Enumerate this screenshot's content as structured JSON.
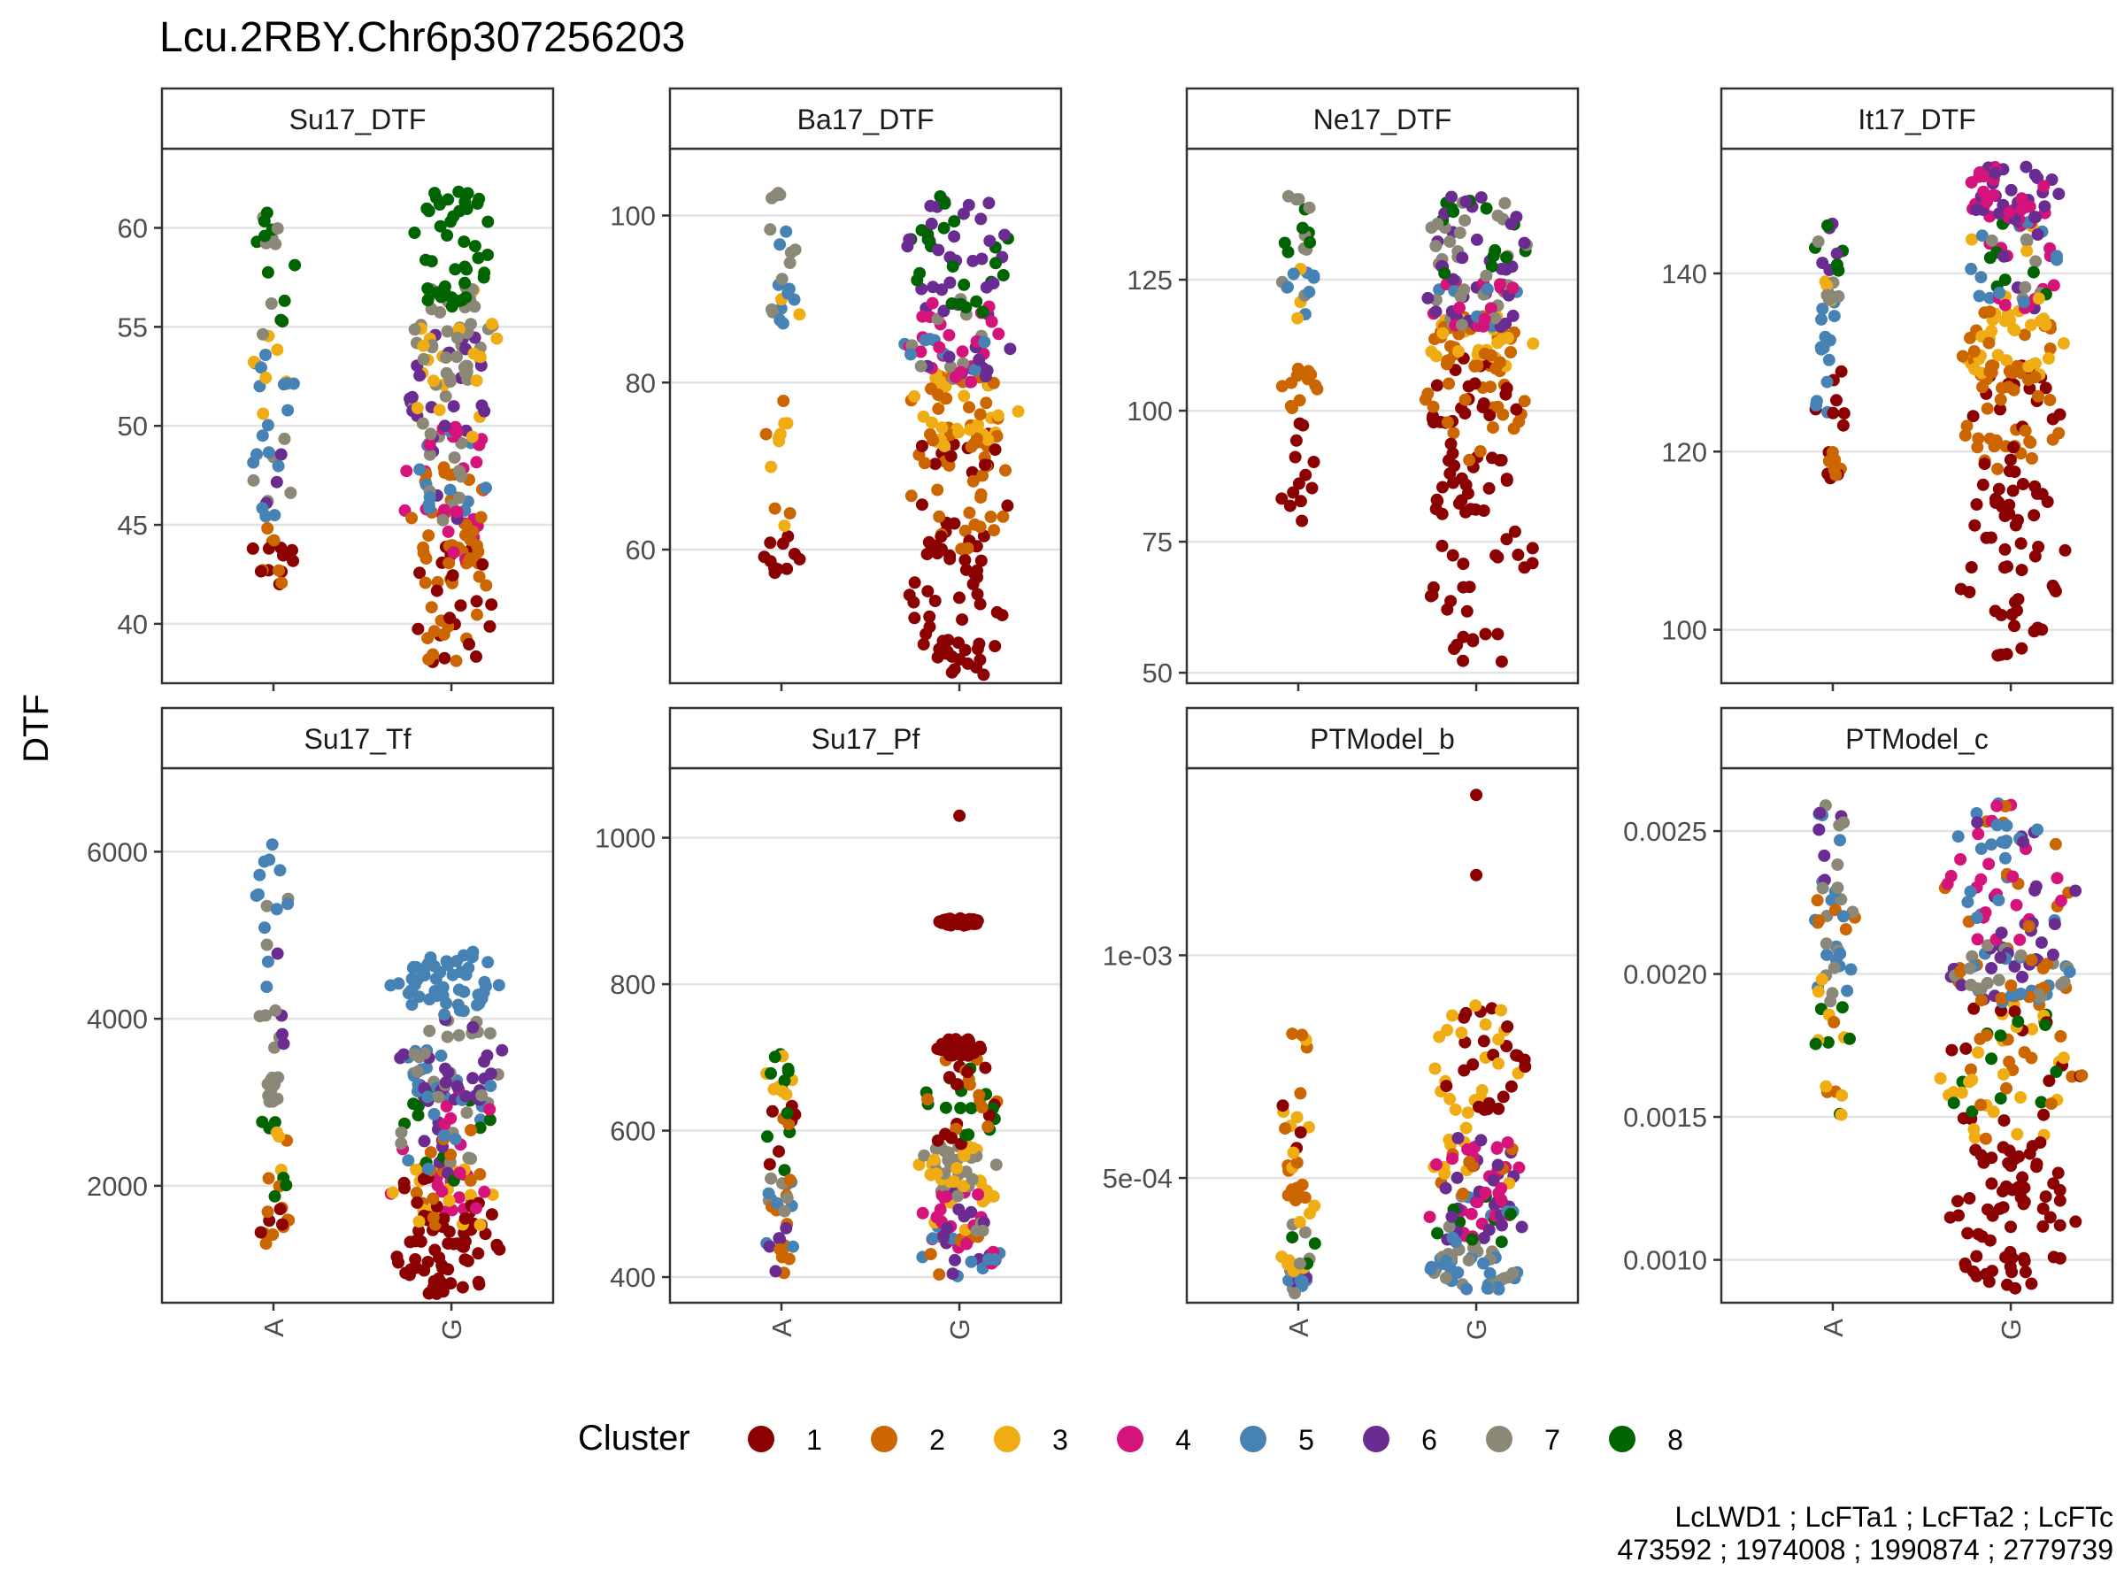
{
  "plot_title": "Lcu.2RBY.Chr6p307256203",
  "y_axis_title": "DTF",
  "legend": {
    "title": "Cluster",
    "items": [
      {
        "label": "1",
        "color": "#8B0000"
      },
      {
        "label": "2",
        "color": "#CC6600"
      },
      {
        "label": "3",
        "color": "#F0AD13"
      },
      {
        "label": "4",
        "color": "#D4147A"
      },
      {
        "label": "5",
        "color": "#4682B4"
      },
      {
        "label": "6",
        "color": "#6A2C91"
      },
      {
        "label": "7",
        "color": "#8B8878"
      },
      {
        "label": "8",
        "color": "#006400"
      }
    ]
  },
  "caption": {
    "line1": "LcLWD1 ; LcFTa1 ; LcFTa2 ; LcFTc",
    "line2": "473592 ; 1974008 ; 1990874 ; 2779739"
  },
  "chart_data": [
    {
      "type": "scatter",
      "title": "Su17_DTF",
      "categories": [
        "A",
        "G"
      ],
      "ylim": [
        37,
        64
      ],
      "yticks": [
        {
          "v": 40,
          "label": "40"
        },
        {
          "v": 45,
          "label": "45"
        },
        {
          "v": 50,
          "label": "50"
        },
        {
          "v": 55,
          "label": "55"
        },
        {
          "v": 60,
          "label": "60"
        }
      ],
      "groups": [
        {
          "category": "A",
          "n": 62,
          "bands": [
            [
              42,
              45,
              [
                1,
                2
              ]
            ],
            [
              45,
              50,
              [
                5,
                7,
                5,
                6
              ]
            ],
            [
              50,
              55,
              [
                7,
                5,
                3
              ]
            ],
            [
              55,
              61,
              [
                7,
                8
              ]
            ]
          ]
        },
        {
          "category": "G",
          "n": 260,
          "bands": [
            [
              38,
              44,
              [
                1,
                2
              ]
            ],
            [
              43,
              48,
              [
                2,
                4,
                2
              ]
            ],
            [
              45,
              50,
              [
                4,
                5,
                6,
                7
              ]
            ],
            [
              49,
              55,
              [
                6,
                7,
                6,
                3
              ]
            ],
            [
              52,
              57,
              [
                7,
                3,
                7
              ]
            ],
            [
              56,
              62,
              [
                8
              ]
            ]
          ]
        }
      ]
    },
    {
      "type": "scatter",
      "title": "Ba17_DTF",
      "categories": [
        "A",
        "G"
      ],
      "ylim": [
        44,
        108
      ],
      "yticks": [
        {
          "v": 60,
          "label": "60"
        },
        {
          "v": 80,
          "label": "80"
        },
        {
          "v": 100,
          "label": "100"
        }
      ],
      "groups": [
        {
          "category": "A",
          "n": 45,
          "bands": [
            [
              56,
              62,
              [
                1
              ]
            ],
            [
              62,
              80,
              [
                2,
                3
              ]
            ],
            [
              84,
              92,
              [
                5,
                7,
                3
              ]
            ],
            [
              92,
              103,
              [
                7,
                5
              ]
            ]
          ]
        },
        {
          "category": "G",
          "n": 260,
          "bands": [
            [
              45,
              62,
              [
                1
              ]
            ],
            [
              60,
              75,
              [
                2,
                1,
                2
              ]
            ],
            [
              72,
              81,
              [
                3,
                2
              ]
            ],
            [
              80,
              90,
              [
                4,
                7,
                5,
                6,
                4
              ]
            ],
            [
              88,
              103,
              [
                6,
                8
              ]
            ]
          ]
        }
      ]
    },
    {
      "type": "scatter",
      "title": "Ne17_DTF",
      "categories": [
        "A",
        "G"
      ],
      "ylim": [
        48,
        150
      ],
      "yticks": [
        {
          "v": 50,
          "label": "50"
        },
        {
          "v": 75,
          "label": "75"
        },
        {
          "v": 100,
          "label": "100"
        },
        {
          "v": 125,
          "label": "125"
        }
      ],
      "groups": [
        {
          "category": "A",
          "n": 50,
          "bands": [
            [
              76,
              98,
              [
                1
              ]
            ],
            [
              100,
              108,
              [
                2
              ]
            ],
            [
              117,
              130,
              [
                5,
                7,
                3
              ]
            ],
            [
              130,
              142,
              [
                7,
                8
              ]
            ]
          ]
        },
        {
          "category": "G",
          "n": 260,
          "bands": [
            [
              52,
              92,
              [
                1
              ]
            ],
            [
              90,
              110,
              [
                2,
                1
              ]
            ],
            [
              108,
              118,
              [
                2,
                3
              ]
            ],
            [
              116,
              125,
              [
                4,
                5,
                6,
                7,
                4
              ]
            ],
            [
              125,
              141,
              [
                6,
                7,
                8
              ]
            ]
          ]
        }
      ]
    },
    {
      "type": "scatter",
      "title": "It17_DTF",
      "categories": [
        "A",
        "G"
      ],
      "ylim": [
        94,
        154
      ],
      "yticks": [
        {
          "v": 100,
          "label": "100"
        },
        {
          "v": 120,
          "label": "120"
        },
        {
          "v": 140,
          "label": "140"
        }
      ],
      "groups": [
        {
          "category": "A",
          "n": 55,
          "bands": [
            [
              117,
              120,
              [
                2,
                1
              ]
            ],
            [
              122,
              129,
              [
                1,
                5
              ]
            ],
            [
              130,
              137,
              [
                5
              ]
            ],
            [
              137,
              140,
              [
                7,
                5,
                7,
                3
              ]
            ],
            [
              140,
              146,
              [
                7,
                8,
                6
              ]
            ]
          ]
        },
        {
          "category": "G",
          "n": 260,
          "bands": [
            [
              97,
              118,
              [
                1
              ]
            ],
            [
              118,
              130,
              [
                2,
                1,
                2
              ]
            ],
            [
              128,
              136,
              [
                3,
                2
              ]
            ],
            [
              136,
              146,
              [
                4,
                6,
                7,
                5,
                4,
                8,
                3
              ]
            ],
            [
              146,
              152,
              [
                6,
                4
              ]
            ]
          ]
        }
      ]
    },
    {
      "type": "scatter",
      "title": "Su17_Tf",
      "categories": [
        "A",
        "G"
      ],
      "ylim": [
        600,
        7000
      ],
      "yticks": [
        {
          "v": 2000,
          "label": "2000"
        },
        {
          "v": 4000,
          "label": "4000"
        },
        {
          "v": 6000,
          "label": "6000"
        }
      ],
      "groups": [
        {
          "category": "A",
          "n": 58,
          "bands": [
            [
              1200,
              1800,
              [
                1,
                2
              ]
            ],
            [
              1800,
              3000,
              [
                2,
                3,
                8
              ]
            ],
            [
              3000,
              3300,
              [
                7
              ]
            ],
            [
              3600,
              5000,
              [
                7,
                5,
                6,
                8
              ]
            ],
            [
              5000,
              6200,
              [
                5,
                7
              ]
            ]
          ]
        },
        {
          "category": "G",
          "n": 270,
          "bands": [
            [
              700,
              1600,
              [
                1
              ]
            ],
            [
              1500,
              2300,
              [
                3,
                1,
                2,
                4
              ]
            ],
            [
              2000,
              3200,
              [
                4,
                6,
                7,
                8,
                5,
                2
              ]
            ],
            [
              3000,
              4000,
              [
                5,
                6,
                7
              ]
            ],
            [
              4000,
              4800,
              [
                5
              ]
            ]
          ]
        }
      ]
    },
    {
      "type": "scatter",
      "title": "Su17_Pf",
      "categories": [
        "A",
        "G"
      ],
      "ylim": [
        365,
        1095
      ],
      "yticks": [
        {
          "v": 400,
          "label": "400"
        },
        {
          "v": 600,
          "label": "600"
        },
        {
          "v": 800,
          "label": "800"
        },
        {
          "v": 1000,
          "label": "1000"
        }
      ],
      "groups": [
        {
          "category": "A",
          "n": 55,
          "bands": [
            [
              405,
              480,
              [
                5,
                2,
                6
              ]
            ],
            [
              470,
              530,
              [
                7,
                2,
                5
              ]
            ],
            [
              530,
              640,
              [
                7,
                8,
                1,
                2
              ]
            ],
            [
              640,
              705,
              [
                8,
                3
              ]
            ]
          ]
        },
        {
          "category": "G",
          "n": 270,
          "bands": [
            [
              400,
              470,
              [
                4,
                6,
                2,
                5
              ]
            ],
            [
              460,
              530,
              [
                6,
                3,
                4,
                7
              ]
            ],
            [
              530,
              580,
              [
                7,
                3
              ]
            ],
            [
              580,
              700,
              [
                8,
                1,
                2
              ]
            ],
            [
              700,
              725,
              [
                1
              ]
            ],
            [
              880,
              890,
              [
                1
              ]
            ],
            [
              1030,
              1030,
              [
                1
              ]
            ]
          ]
        }
      ]
    },
    {
      "type": "scatter",
      "title": "PTModel_b",
      "categories": [
        "A",
        "G"
      ],
      "ylim": [
        0.00022,
        0.00142
      ],
      "yticks": [
        {
          "v": 0.0005,
          "label": "5e-04"
        },
        {
          "v": 0.001,
          "label": "1e-03"
        }
      ],
      "groups": [
        {
          "category": "A",
          "n": 55,
          "bands": [
            [
              0.00024,
              0.00029,
              [
                5,
                7,
                6
              ]
            ],
            [
              0.00029,
              0.0004,
              [
                7,
                8,
                3
              ]
            ],
            [
              0.0004,
              0.00055,
              [
                2,
                3
              ]
            ],
            [
              0.00055,
              0.00083,
              [
                1,
                2,
                3
              ]
            ]
          ]
        },
        {
          "category": "G",
          "n": 270,
          "bands": [
            [
              0.00025,
              0.00034,
              [
                5,
                7
              ]
            ],
            [
              0.00034,
              0.00046,
              [
                4,
                6,
                5,
                7,
                8
              ]
            ],
            [
              0.00046,
              0.0006,
              [
                4,
                3,
                2,
                6
              ]
            ],
            [
              0.0006,
              0.00089,
              [
                1,
                3
              ]
            ],
            [
              0.00118,
              0.00118,
              [
                1
              ]
            ],
            [
              0.00136,
              0.00136,
              [
                1
              ]
            ]
          ]
        }
      ]
    },
    {
      "type": "scatter",
      "title": "PTModel_c",
      "categories": [
        "A",
        "G"
      ],
      "ylim": [
        0.00085,
        0.00272
      ],
      "yticks": [
        {
          "v": 0.001,
          "label": "0.0010"
        },
        {
          "v": 0.0015,
          "label": "0.0015"
        },
        {
          "v": 0.002,
          "label": "0.0020"
        },
        {
          "v": 0.0025,
          "label": "0.0025"
        }
      ],
      "groups": [
        {
          "category": "A",
          "n": 58,
          "bands": [
            [
              0.0015,
              0.0019,
              [
                8,
                3,
                2
              ]
            ],
            [
              0.0019,
              0.0021,
              [
                7,
                5,
                3
              ]
            ],
            [
              0.0021,
              0.0023,
              [
                7,
                5,
                2
              ]
            ],
            [
              0.0023,
              0.0026,
              [
                5,
                6,
                7
              ]
            ]
          ]
        },
        {
          "category": "G",
          "n": 270,
          "bands": [
            [
              0.0009,
              0.0014,
              [
                1
              ]
            ],
            [
              0.0014,
              0.0019,
              [
                8,
                3,
                2,
                1
              ]
            ],
            [
              0.0019,
              0.0021,
              [
                7,
                5,
                6,
                2
              ]
            ],
            [
              0.0021,
              0.0026,
              [
                4,
                6,
                5,
                2,
                4
              ]
            ]
          ]
        }
      ]
    }
  ]
}
